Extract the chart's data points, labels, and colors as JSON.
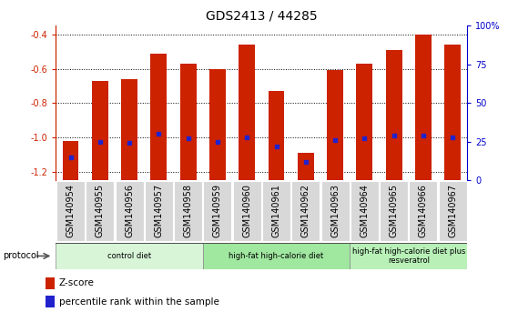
{
  "title": "GDS2413 / 44285",
  "samples": [
    "GSM140954",
    "GSM140955",
    "GSM140956",
    "GSM140957",
    "GSM140958",
    "GSM140959",
    "GSM140960",
    "GSM140961",
    "GSM140962",
    "GSM140963",
    "GSM140964",
    "GSM140965",
    "GSM140966",
    "GSM140967"
  ],
  "zscore": [
    -1.02,
    -0.67,
    -0.66,
    -0.51,
    -0.57,
    -0.6,
    -0.46,
    -0.73,
    -1.09,
    -0.61,
    -0.57,
    -0.49,
    -0.4,
    -0.46
  ],
  "pct_rank": [
    15,
    25,
    24,
    30,
    27,
    25,
    28,
    22,
    12,
    26,
    27,
    29,
    29,
    28
  ],
  "bar_color": "#cc2200",
  "dot_color": "#2222cc",
  "ylim_left": [
    -1.25,
    -0.35
  ],
  "yticks_left": [
    -1.2,
    -1.0,
    -0.8,
    -0.6,
    -0.4
  ],
  "ylim_right": [
    0,
    100
  ],
  "yticks_right": [
    0,
    25,
    50,
    75,
    100
  ],
  "yticklabels_right": [
    "0",
    "25",
    "50",
    "75",
    "100%"
  ],
  "protocol_groups": [
    {
      "label": "control diet",
      "start": 0,
      "end": 4,
      "color": "#d8f5d8"
    },
    {
      "label": "high-fat high-calorie diet",
      "start": 5,
      "end": 9,
      "color": "#a0e8a0"
    },
    {
      "label": "high-fat high-calorie diet plus\nresveratrol",
      "start": 10,
      "end": 13,
      "color": "#b8f0b8"
    }
  ],
  "protocol_label": "protocol",
  "legend_zscore": "Z-score",
  "legend_pct": "percentile rank within the sample",
  "bar_color_label": "#cc2200",
  "right_axis_color": "#0000cc",
  "title_fontsize": 10,
  "tick_fontsize": 7,
  "label_fontsize": 7.5
}
